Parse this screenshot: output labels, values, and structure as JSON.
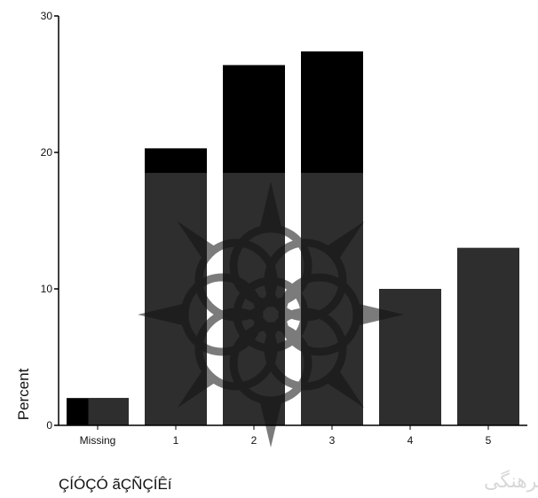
{
  "chart_data": {
    "type": "bar",
    "categories": [
      "Missing",
      "1",
      "2",
      "3",
      "4",
      "5"
    ],
    "values": [
      2.0,
      20.3,
      26.4,
      27.4,
      10.0,
      13.0
    ],
    "ylabel": "Percent",
    "xlabel": "ÇÍÓÇÓ ãÇÑÇÍÊí",
    "ylim": [
      0,
      30
    ],
    "yticks": [
      0,
      10,
      20,
      30
    ],
    "grid": false,
    "legend": "none",
    "colors": {
      "bar": "#000000",
      "bar_overlay": "#2e2e2e",
      "axis": "#000000"
    }
  },
  "watermark": {
    "icon": "rosette-watermark-icon",
    "text": "شگاه علوم انسانی و مطالعات فرهنگی"
  }
}
